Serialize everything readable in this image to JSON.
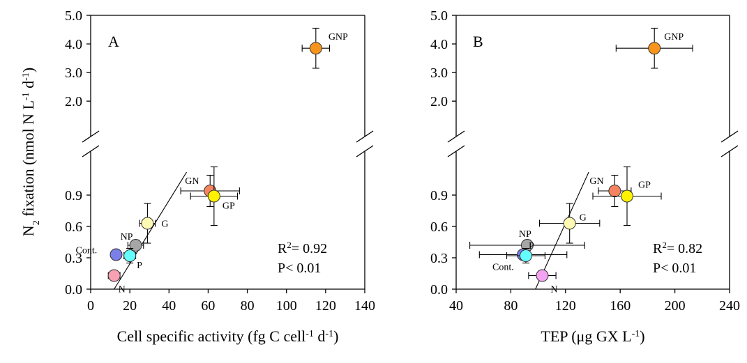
{
  "chart_data": [
    {
      "type": "scatter",
      "panel": "A",
      "xlabel_parts": [
        "Cell specific activity (fg C cell",
        "-1",
        " d",
        "-1",
        ")"
      ],
      "ylabel_parts": [
        "N",
        "2",
        " fixation (nmol N L",
        "-1",
        " d",
        "-1",
        ")"
      ],
      "xlim": [
        0,
        140
      ],
      "xticks": [
        "0",
        "20",
        "40",
        "60",
        "80",
        "100",
        "120",
        "140"
      ],
      "ylim_lower": [
        0,
        1.2
      ],
      "yticks_lower": [
        "0.0",
        "0.3",
        "0.6",
        "0.9"
      ],
      "ylim_upper": [
        1.2,
        5.0
      ],
      "yticks_upper": [
        "2.0",
        "3.0",
        "4.0",
        "5.0"
      ],
      "axis_break": true,
      "r2_prefix": "R",
      "r2_sup": "2",
      "r2_value": "= 0.92",
      "p_text": "P< 0.01",
      "fit_line": {
        "x1": 12,
        "y1": 0.0,
        "x2": 49,
        "y2": 1.12
      },
      "points": [
        {
          "label": "GNP",
          "x": 115,
          "y": 3.85,
          "xerr": 7,
          "yerr": 0.7,
          "color": "#F7941D"
        },
        {
          "label": "GN",
          "x": 61,
          "y": 0.94,
          "xerr": 15,
          "yerr": 0.15,
          "color": "#F4845F"
        },
        {
          "label": "GP",
          "x": 63,
          "y": 0.89,
          "xerr": 12,
          "yerr": 0.28,
          "color": "#FFF200"
        },
        {
          "label": "G",
          "x": 29,
          "y": 0.63,
          "xerr": 4,
          "yerr": 0.19,
          "color": "#FFFAB3"
        },
        {
          "label": "NP",
          "x": 23,
          "y": 0.42,
          "xerr": 4,
          "yerr": 0.05,
          "color": "#A6A6A6"
        },
        {
          "label": "Cont.",
          "x": 13,
          "y": 0.33,
          "xerr": 2,
          "yerr": 0.03,
          "color": "#7B7FE8"
        },
        {
          "label": "P",
          "x": 20,
          "y": 0.32,
          "xerr": 3,
          "yerr": 0.07,
          "color": "#66FFFF"
        },
        {
          "label": "N",
          "x": 12,
          "y": 0.13,
          "xerr": 3,
          "yerr": 0.03,
          "color": "#F7A1B3"
        }
      ]
    },
    {
      "type": "scatter",
      "panel": "B",
      "xlabel_parts": [
        "TEP (μg GX L",
        "-1",
        ")"
      ],
      "ylabel_parts": [],
      "xlim": [
        40,
        240
      ],
      "xticks": [
        "40",
        "80",
        "120",
        "160",
        "200",
        "240"
      ],
      "ylim_lower": [
        0,
        1.2
      ],
      "yticks_lower": [
        "0.0",
        "0.3",
        "0.6",
        "0.9"
      ],
      "ylim_upper": [
        1.2,
        5.0
      ],
      "yticks_upper": [
        "2.0",
        "3.0",
        "4.0",
        "5.0"
      ],
      "axis_break": true,
      "r2_prefix": "R",
      "r2_sup": "2",
      "r2_value": "= 0.82",
      "p_text": "P< 0.01",
      "fit_line": {
        "x1": 98,
        "y1": 0.0,
        "x2": 137,
        "y2": 1.12
      },
      "points": [
        {
          "label": "GNP",
          "x": 185,
          "y": 3.85,
          "xerr": 28,
          "yerr": 0.7,
          "color": "#F7941D"
        },
        {
          "label": "GN",
          "x": 156,
          "y": 0.94,
          "xerr": 12,
          "yerr": 0.15,
          "color": "#F4845F"
        },
        {
          "label": "GP",
          "x": 165,
          "y": 0.89,
          "xerr": 25,
          "yerr": 0.28,
          "color": "#FFF200"
        },
        {
          "label": "G",
          "x": 123,
          "y": 0.63,
          "xerr": 22,
          "yerr": 0.19,
          "color": "#FFFAB3"
        },
        {
          "label": "NP",
          "x": 92,
          "y": 0.42,
          "xerr": 42,
          "yerr": 0.05,
          "color": "#A6A6A6"
        },
        {
          "label": "Cont.",
          "x": 89,
          "y": 0.33,
          "xerr": 32,
          "yerr": 0.03,
          "color": "#7B7FE8"
        },
        {
          "label": "P",
          "x": 91,
          "y": 0.32,
          "xerr": 14,
          "yerr": 0.07,
          "color": "#66FFFF"
        },
        {
          "label": "N",
          "x": 103,
          "y": 0.13,
          "xerr": 10,
          "yerr": 0.03,
          "color": "#F4A3F2"
        }
      ]
    }
  ]
}
